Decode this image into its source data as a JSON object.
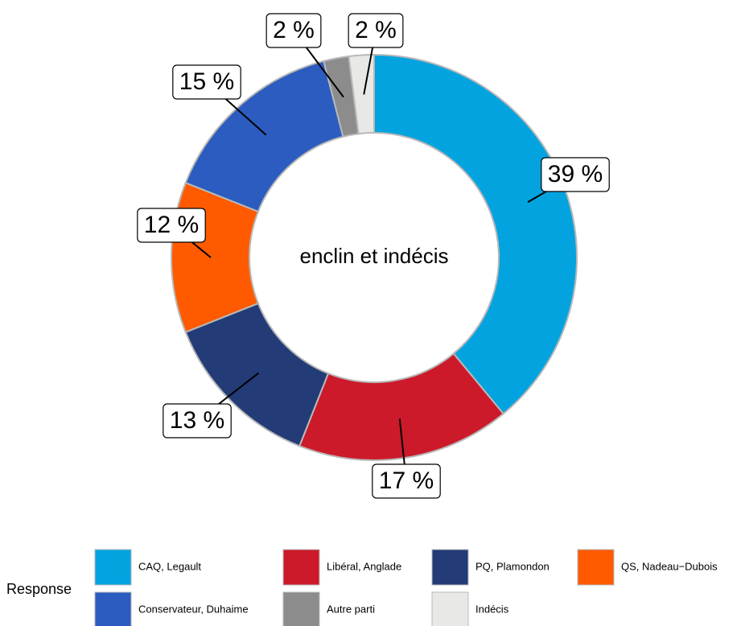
{
  "chart_data": {
    "type": "donut",
    "center_label": "enclin et indécis",
    "categories": [
      "CAQ, Legault",
      "Libéral, Anglade",
      "PQ, Plamondon",
      "QS, Nadeau−Dubois",
      "Conservateur, Duhaime",
      "Autre parti",
      "Indécis"
    ],
    "values": [
      39,
      17,
      13,
      12,
      15,
      2,
      2
    ],
    "value_labels": [
      "39 %",
      "17 %",
      "13 %",
      "12 %",
      "15 %",
      "2 %",
      "2 %"
    ],
    "colors": [
      "#03a3e0",
      "#cc1a2b",
      "#233b77",
      "#ff5a00",
      "#2c5cbf",
      "#8c8c8c",
      "#e8e9e7"
    ],
    "legend_title": "Response"
  }
}
